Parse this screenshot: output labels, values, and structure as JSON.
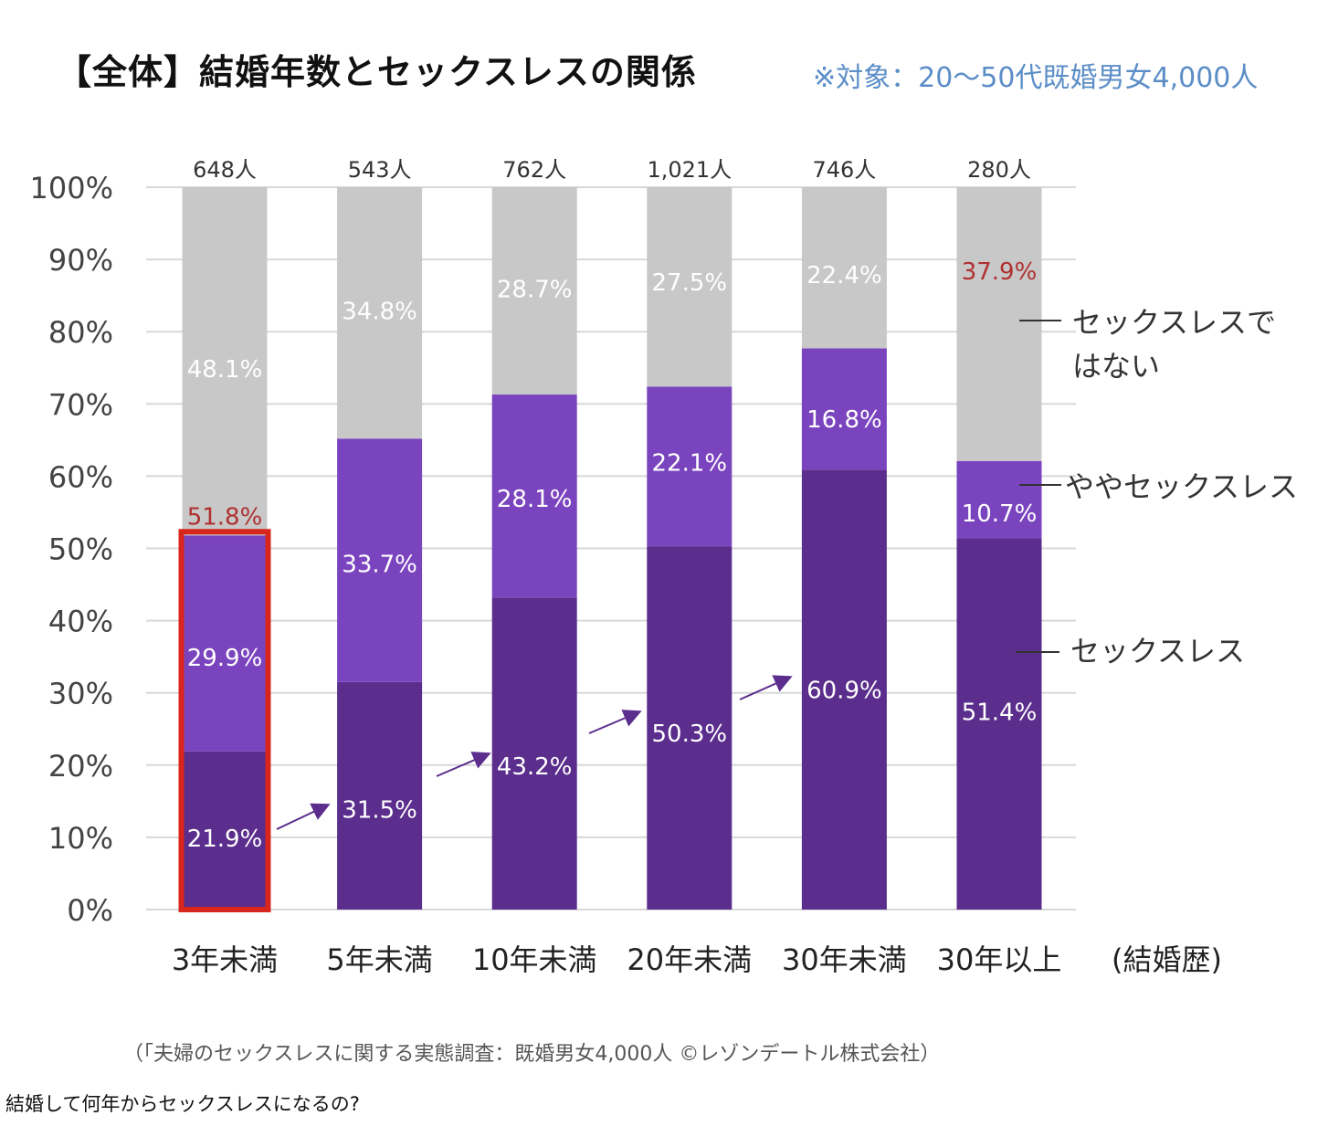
{
  "page": {
    "title": "【全体】結婚年数とセックスレスの関係",
    "subtitle": "※対象：20〜50代既婚男女4,000人",
    "source": "（「夫婦のセックスレスに関する実態調査：既婚男女4,000人 ©レゾンデートル株式会社）",
    "caption": "結婚して何年からセックスレスになるの?"
  },
  "colors": {
    "sexless": "#5b2d8c",
    "somewhat": "#7b44bf",
    "not_sexless": "#c8c8c8",
    "highlight": "#d9261c",
    "red_label": "#b03030",
    "grid": "#d8d8d8",
    "white_label": "#ffffff"
  },
  "chart_data": {
    "type": "bar",
    "stacked": true,
    "categories": [
      "3年未満",
      "5年未満",
      "10年未満",
      "20年未満",
      "30年未満",
      "30年以上"
    ],
    "x_suffix": "(結婚歴)",
    "counts": [
      "648人",
      "543人",
      "762人",
      "1,021人",
      "746人",
      "280人"
    ],
    "ylim": [
      0,
      100
    ],
    "yticks": [
      "0%",
      "10%",
      "20%",
      "30%",
      "40%",
      "50%",
      "60%",
      "70%",
      "80%",
      "90%",
      "100%"
    ],
    "grid": true,
    "series": [
      {
        "name": "セックスレス",
        "values": [
          21.9,
          31.5,
          43.2,
          50.3,
          60.9,
          51.4
        ],
        "labels": [
          "21.9%",
          "31.5%",
          "43.2%",
          "50.3%",
          "60.9%",
          "51.4%"
        ]
      },
      {
        "name": "ややセックスレス",
        "values": [
          29.9,
          33.7,
          28.1,
          22.1,
          16.8,
          10.7
        ],
        "labels": [
          "29.9%",
          "33.7%",
          "28.1%",
          "22.1%",
          "16.8%",
          "10.7%"
        ]
      },
      {
        "name": "セックスレスではない",
        "values": [
          48.1,
          34.8,
          28.7,
          27.5,
          22.4,
          37.9
        ],
        "labels": [
          "48.1%",
          "34.8%",
          "28.7%",
          "27.5%",
          "22.4%",
          "37.9%"
        ]
      }
    ],
    "legend": {
      "placement": "right",
      "not_sexless_lines": [
        "セックスレスで",
        "はない"
      ],
      "somewhat": "ややセックスレス",
      "sexless": "セックスレス"
    },
    "annotations": {
      "highlight_category": "3年未満",
      "highlight_label": "51.8%",
      "red_value_category": "30年以上",
      "trend_arrows": true
    }
  }
}
